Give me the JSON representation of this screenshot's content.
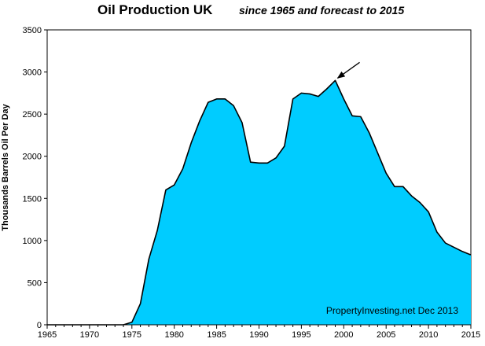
{
  "chart_data": {
    "type": "area",
    "title": "Oil Production UK",
    "subtitle": "since 1965 and forecast to 2015",
    "xlabel": "",
    "ylabel": "Thousands Barrels Oil Per Day",
    "xlim": [
      1965,
      2015
    ],
    "ylim": [
      0,
      3500
    ],
    "xticks": [
      "1965",
      "1970",
      "1975",
      "1980",
      "1985",
      "1990",
      "1995",
      "2000",
      "2005",
      "2010",
      "2015"
    ],
    "yticks": [
      "0",
      "500",
      "1000",
      "1500",
      "2000",
      "2500",
      "3000",
      "3500"
    ],
    "grid": false,
    "fill_color": "#00CCFF",
    "line_color": "#000000",
    "x": [
      1965,
      1966,
      1967,
      1968,
      1969,
      1970,
      1971,
      1972,
      1973,
      1974,
      1975,
      1976,
      1977,
      1978,
      1979,
      1980,
      1981,
      1982,
      1983,
      1984,
      1985,
      1986,
      1987,
      1988,
      1989,
      1990,
      1991,
      1992,
      1993,
      1994,
      1995,
      1996,
      1997,
      1998,
      1999,
      2000,
      2001,
      2002,
      2003,
      2004,
      2005,
      2006,
      2007,
      2008,
      2009,
      2010,
      2011,
      2012,
      2013,
      2014,
      2015
    ],
    "values": [
      0,
      0,
      0,
      0,
      0,
      0,
      0,
      0,
      0,
      0,
      30,
      250,
      780,
      1120,
      1600,
      1660,
      1850,
      2160,
      2420,
      2640,
      2680,
      2680,
      2600,
      2400,
      1930,
      1920,
      1920,
      1980,
      2120,
      2680,
      2750,
      2740,
      2710,
      2800,
      2900,
      2680,
      2480,
      2470,
      2280,
      2040,
      1800,
      1640,
      1640,
      1530,
      1450,
      1340,
      1100,
      970,
      920,
      870,
      830
    ],
    "annotations": [
      {
        "type": "arrow",
        "target_x": 1999,
        "target_y": 2900,
        "text": ""
      },
      {
        "type": "text",
        "text": "PropertyInvesting.net  Dec 2013",
        "placement": "bottom-right"
      }
    ]
  }
}
